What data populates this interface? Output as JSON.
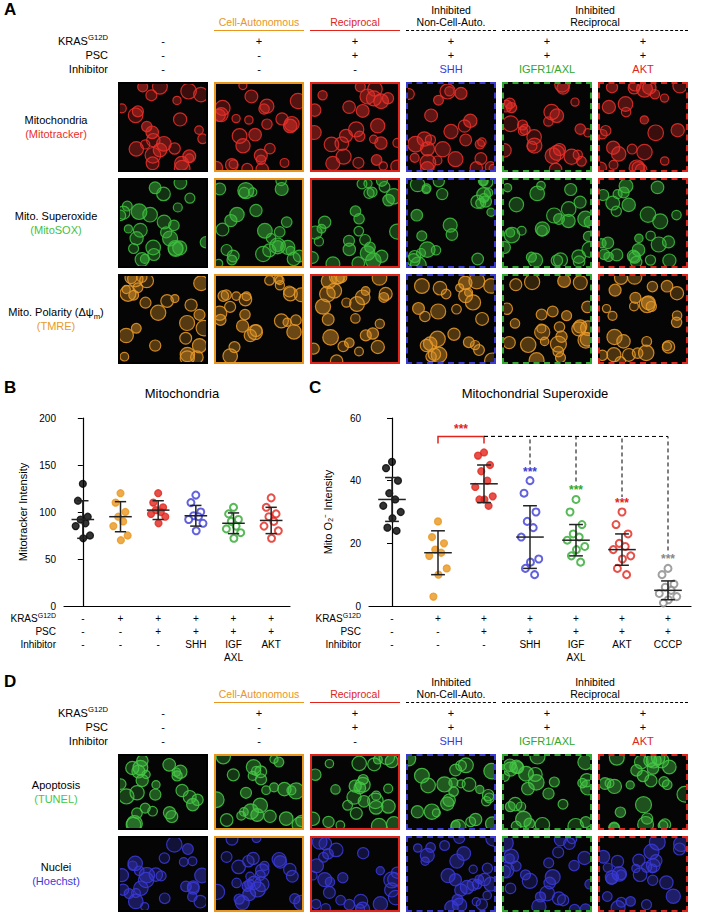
{
  "panels": [
    {
      "panel_label": "A",
      "column_colors": [
        "#000000",
        "#e8961e",
        "#e0241c",
        "#3b3bd4",
        "#2ea82e",
        "#e0241c"
      ],
      "column_line_styles": [
        "solid",
        "solid",
        "solid",
        "dashed",
        "dashed",
        "dashed"
      ],
      "groups": [
        {
          "label": "Cell-Autonomous",
          "columns": [
            1
          ],
          "color": "#e8961e",
          "line_style": "solid"
        },
        {
          "label": "Reciprocal",
          "columns": [
            2
          ],
          "color": "#e0241c",
          "line_style": "solid"
        },
        {
          "label": "Inhibited\nNon-Cell-Auto.",
          "columns": [
            3
          ],
          "color": "#000000",
          "line_style": "dashed"
        },
        {
          "label": "Inhibited\nReciprocal",
          "columns": [
            4,
            5
          ],
          "color": "#000000",
          "line_style": "dashed"
        }
      ],
      "conditions": [
        {
          "label": [
            "KRAS",
            {
              "sup": "G12D"
            }
          ],
          "values": [
            "-",
            "+",
            "+",
            "+",
            "+",
            "+"
          ]
        },
        {
          "label": [
            "PSC"
          ],
          "values": [
            "-",
            "-",
            "+",
            "+",
            "+",
            "+"
          ]
        },
        {
          "label": [
            "Inhibitor"
          ],
          "values": [
            "-",
            "-",
            "-",
            "SHH",
            "IGFR1/AXL",
            "AKT"
          ],
          "colors": [
            "#000000",
            "#000000",
            "#000000",
            "#3b3bd4",
            "#2ea82e",
            "#e0241c"
          ]
        }
      ],
      "image_rows": [
        {
          "label": [
            "Mitochondria"
          ],
          "stain": "(Mitotracker)",
          "color": "#e8302a"
        },
        {
          "label": [
            "Mito. Superoxide"
          ],
          "stain": "(MitoSOX)",
          "color": "#3fbf3f"
        },
        {
          "label": [
            "Mito. Polarity (Δψ",
            {
              "sub": "m"
            },
            ")"
          ],
          "stain": "(TMRE)",
          "color": "#e89a2a"
        }
      ]
    },
    {
      "panel_label": "D",
      "column_colors": [
        "#000000",
        "#e8961e",
        "#e0241c",
        "#3b3bd4",
        "#2ea82e",
        "#e0241c"
      ],
      "column_line_styles": [
        "solid",
        "solid",
        "solid",
        "dashed",
        "dashed",
        "dashed"
      ],
      "groups": [
        {
          "label": "Cell-Autonomous",
          "columns": [
            1
          ],
          "color": "#e8961e",
          "line_style": "solid"
        },
        {
          "label": "Reciprocal",
          "columns": [
            2
          ],
          "color": "#e0241c",
          "line_style": "solid"
        },
        {
          "label": "Inhibited\nNon-Cell-Auto.",
          "columns": [
            3
          ],
          "color": "#000000",
          "line_style": "dashed"
        },
        {
          "label": "Inhibited\nReciprocal",
          "columns": [
            4,
            5
          ],
          "color": "#000000",
          "line_style": "dashed"
        }
      ],
      "conditions": [
        {
          "label": [
            "KRAS",
            {
              "sup": "G12D"
            }
          ],
          "values": [
            "-",
            "+",
            "+",
            "+",
            "+",
            "+"
          ]
        },
        {
          "label": [
            "PSC"
          ],
          "values": [
            "-",
            "-",
            "+",
            "+",
            "+",
            "+"
          ]
        },
        {
          "label": [
            "Inhibitor"
          ],
          "values": [
            "-",
            "-",
            "-",
            "SHH",
            "IGFR1/AXL",
            "AKT"
          ],
          "colors": [
            "#000000",
            "#000000",
            "#000000",
            "#3b3bd4",
            "#2ea82e",
            "#e0241c"
          ]
        }
      ],
      "image_rows": [
        {
          "label": [
            "Apoptosis"
          ],
          "stain": "(TUNEL)",
          "color": "#46c846"
        },
        {
          "label": [
            "Nuclei"
          ],
          "stain": "(Hoechst)",
          "color": "#3a3ad8"
        }
      ]
    }
  ],
  "chart_data": [
    {
      "panel_label": "B",
      "type": "scatter",
      "title": "Mitochondria",
      "y_label": "Mitotracker Intensity",
      "ylim": [
        0,
        200
      ],
      "yticks": [
        0,
        50,
        100,
        150,
        200
      ],
      "grid": false,
      "conditions": [
        {
          "label": [
            "KRAS",
            {
              "sup": "G12D"
            }
          ],
          "values": [
            "-",
            "+",
            "+",
            "+",
            "+",
            "+"
          ]
        },
        {
          "label": [
            "PSC"
          ],
          "values": [
            "-",
            "-",
            "+",
            "+",
            "+",
            "+"
          ]
        },
        {
          "label": [
            "Inhibitor"
          ],
          "values": [
            "-",
            "-",
            "-",
            "SHH",
            "IGF\nAXL",
            "AKT"
          ]
        }
      ],
      "series": [
        {
          "color": "#000000",
          "marker": "circle",
          "values": [
            130,
            112,
            95,
            92,
            88,
            85,
            75,
            72
          ],
          "mean": 92,
          "sd": 20
        },
        {
          "color": "#e8961e",
          "marker": "circle",
          "values": [
            120,
            110,
            100,
            95,
            90,
            85,
            75,
            70
          ],
          "mean": 95,
          "sd": 16
        },
        {
          "color": "#e0241c",
          "marker": "circle",
          "values": [
            120,
            110,
            105,
            102,
            100,
            98,
            95,
            88
          ],
          "mean": 102,
          "sd": 10
        },
        {
          "color": "#3b3bd4",
          "marker": "open_circle",
          "values": [
            118,
            110,
            100,
            96,
            95,
            92,
            88,
            80
          ],
          "mean": 96,
          "sd": 11
        },
        {
          "color": "#2ea82e",
          "marker": "open_circle",
          "values": [
            105,
            98,
            92,
            90,
            85,
            82,
            78,
            72
          ],
          "mean": 88,
          "sd": 11
        },
        {
          "color": "#e0241c",
          "marker": "open_circle",
          "values": [
            115,
            105,
            98,
            95,
            90,
            85,
            80,
            72
          ],
          "mean": 91,
          "sd": 14
        }
      ]
    },
    {
      "panel_label": "C",
      "type": "scatter",
      "title": "Mitochondrial Superoxide",
      "y_label": "Mito O₂⁻ Intensity",
      "ylim": [
        0,
        60
      ],
      "yticks": [
        0,
        20,
        40,
        60
      ],
      "grid": false,
      "conditions": [
        {
          "label": [
            "KRAS",
            {
              "sup": "G12D"
            }
          ],
          "values": [
            "-",
            "+",
            "+",
            "+",
            "+",
            "+",
            "+"
          ]
        },
        {
          "label": [
            "PSC"
          ],
          "values": [
            "-",
            "-",
            "+",
            "+",
            "+",
            "+",
            "+"
          ]
        },
        {
          "label": [
            "Inhibitor"
          ],
          "values": [
            "-",
            "-",
            "-",
            "SHH",
            "IGF\nAXL",
            "AKT",
            "CCCP"
          ]
        }
      ],
      "series": [
        {
          "color": "#000000",
          "marker": "circle",
          "values": [
            46,
            44,
            40,
            36,
            34,
            32,
            30,
            28,
            25,
            24
          ],
          "mean": 34,
          "sd": 7
        },
        {
          "color": "#e8961e",
          "marker": "circle",
          "values": [
            27,
            22,
            20,
            18,
            17,
            16,
            12,
            10,
            3
          ],
          "mean": 17,
          "sd": 7
        },
        {
          "color": "#e0241c",
          "marker": "circle",
          "values": [
            49,
            48,
            45,
            43,
            40,
            38,
            35,
            34,
            34,
            32
          ],
          "mean": 39,
          "sd": 6
        },
        {
          "color": "#3b3bd4",
          "marker": "open_circle",
          "values": [
            40,
            36,
            30,
            27,
            25,
            22,
            15,
            14,
            12,
            10
          ],
          "mean": 22,
          "sd": 10
        },
        {
          "color": "#2ea82e",
          "marker": "open_circle",
          "values": [
            34,
            30,
            26,
            23,
            22,
            21,
            19,
            18,
            16,
            14
          ],
          "mean": 21,
          "sd": 5
        },
        {
          "color": "#e0241c",
          "marker": "open_circle",
          "values": [
            30,
            26,
            23,
            20,
            19,
            18,
            16,
            15,
            12,
            10
          ],
          "mean": 18,
          "sd": 5
        },
        {
          "color": "#888888",
          "marker": "open_circle",
          "values": [
            12,
            10,
            7,
            6,
            5,
            4,
            3,
            2,
            1
          ],
          "mean": 5,
          "sd": 3
        }
      ],
      "comparisons": [
        {
          "groups": [
            1,
            2
          ],
          "label": "***",
          "line_style": "solid",
          "color": "#e0241c"
        },
        {
          "groups": [
            2,
            3
          ],
          "label": "***",
          "line_style": "dashed",
          "color": "#000000"
        },
        {
          "groups": [
            2,
            4
          ],
          "label": "***",
          "line_style": "dashed",
          "color": "#000000"
        },
        {
          "groups": [
            2,
            5
          ],
          "label": "***",
          "line_style": "dashed",
          "color": "#000000"
        },
        {
          "groups": [
            2,
            6
          ],
          "label": "***",
          "line_style": "dashed",
          "color": "#000000"
        }
      ]
    }
  ]
}
